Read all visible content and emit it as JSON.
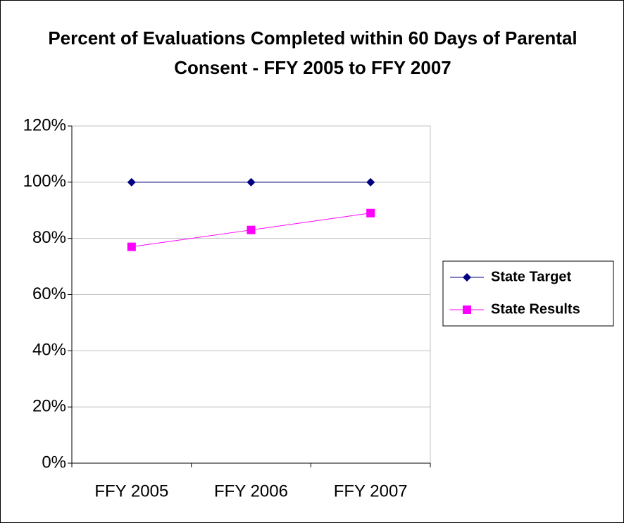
{
  "chart_data": {
    "type": "line",
    "title": "Percent of Evaluations Completed within 60 Days of Parental Consent - FFY 2005 to FFY 2007",
    "categories": [
      "FFY 2005",
      "FFY 2006",
      "FFY 2007"
    ],
    "series": [
      {
        "name": "State Target",
        "color": "#000080",
        "marker": "diamond",
        "values": [
          100,
          100,
          100
        ]
      },
      {
        "name": "State Results",
        "color": "#ff00ff",
        "marker": "square",
        "values": [
          77,
          83,
          89
        ]
      }
    ],
    "ylim": [
      0,
      120
    ],
    "yticks": [
      {
        "value": 0,
        "label": "0%"
      },
      {
        "value": 20,
        "label": "20%"
      },
      {
        "value": 40,
        "label": "40%"
      },
      {
        "value": 60,
        "label": "60%"
      },
      {
        "value": 80,
        "label": "80%"
      },
      {
        "value": 100,
        "label": "100%"
      },
      {
        "value": 120,
        "label": "120%"
      }
    ],
    "grid": true,
    "legend": "right"
  }
}
